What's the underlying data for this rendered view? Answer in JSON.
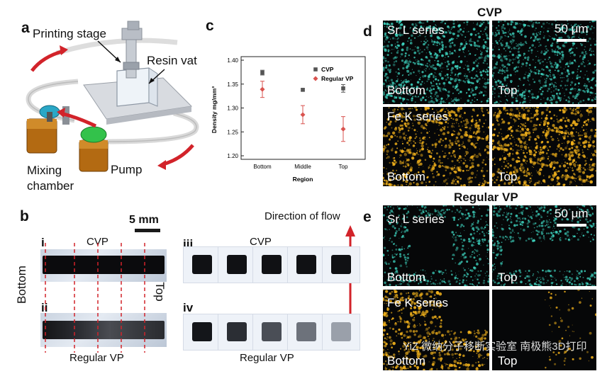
{
  "panel_a": {
    "label": "a",
    "printing_stage": "Printing stage",
    "resin_vat": "Resin vat",
    "mixing_chamber_line1": "Mixing",
    "mixing_chamber_line2": "chamber",
    "pump": "Pump"
  },
  "panel_b": {
    "label": "b",
    "scale": "5 mm",
    "direction_of_flow": "Direction of flow",
    "i": "i",
    "ii": "ii",
    "iii": "iii",
    "iv": "iv",
    "cvp_top_left": "CVP",
    "cvp_top_right": "CVP",
    "regular_vp_left": "Regular VP",
    "regular_vp_right": "Regular VP",
    "bottom": "Bottom",
    "top": "Top"
  },
  "panel_c": {
    "label": "c",
    "chart_data": {
      "type": "scatter",
      "categories": [
        "Bottom",
        "Middle",
        "Top"
      ],
      "xlabel": "Region",
      "ylabel": "Density mg/mm³",
      "ylim": [
        1.2,
        1.4
      ],
      "yticks": [
        "1.20",
        "1.25",
        "1.30",
        "1.35",
        "1.40"
      ],
      "legend_position": "top-right",
      "series": [
        {
          "name": "CVP",
          "color": "#555555",
          "marker": "square",
          "values": [
            1.374,
            1.338,
            1.341
          ],
          "errors": [
            0.005,
            0.002,
            0.008
          ]
        },
        {
          "name": "Regular VP",
          "color": "#d9534f",
          "marker": "diamond",
          "values": [
            1.339,
            1.286,
            1.256
          ],
          "errors": [
            0.017,
            0.019,
            0.026
          ]
        }
      ]
    }
  },
  "panel_d": {
    "label": "d",
    "title": "CVP",
    "scale": "50 μm",
    "sr": "Sr L series",
    "fe": "Fe K series",
    "bottom": "Bottom",
    "top": "Top"
  },
  "panel_e": {
    "label": "e",
    "title": "Regular VP",
    "scale": "50 μm",
    "sr": "Sr L series",
    "fe": "Fe K series",
    "bottom": "Bottom",
    "top": "Top"
  },
  "watermark": "YiZ 微纳分子移断实验室 南极熊3D打印",
  "colors": {
    "teal": "#3fd9c4",
    "gold": "#f2b21b",
    "red_arrow": "#d2232a",
    "error_red": "#d9534f"
  }
}
